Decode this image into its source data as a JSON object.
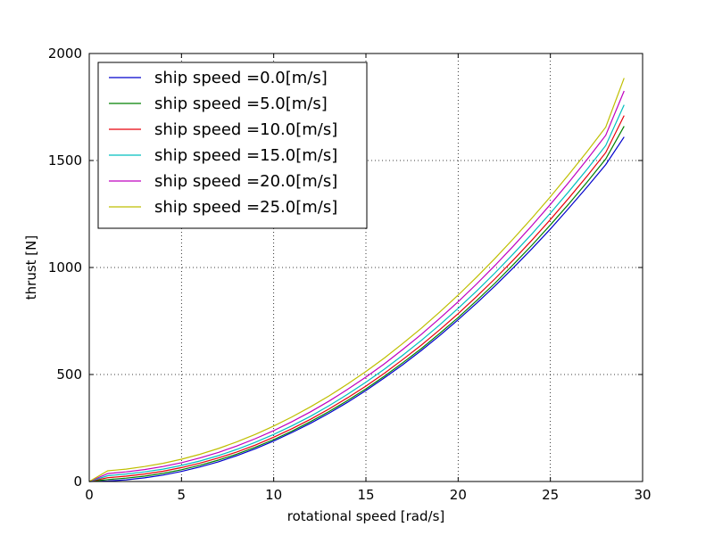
{
  "chart_data": {
    "type": "line",
    "title": "",
    "xlabel": "rotational speed [rad/s]",
    "ylabel": "thrust [N]",
    "xlim": [
      0,
      30
    ],
    "ylim": [
      0,
      2000
    ],
    "xticks": [
      0,
      5,
      10,
      15,
      20,
      25,
      30
    ],
    "yticks": [
      0,
      500,
      1000,
      1500,
      2000
    ],
    "xtick_labels": [
      "0",
      "5",
      "10",
      "15",
      "20",
      "25",
      "30"
    ],
    "ytick_labels": [
      "0",
      "500",
      "1000",
      "1500",
      "2000"
    ],
    "grid": true,
    "legend_location": "upper-left",
    "x": [
      0,
      1,
      2,
      3,
      4,
      5,
      6,
      7,
      8,
      9,
      10,
      11,
      12,
      13,
      14,
      15,
      16,
      17,
      18,
      19,
      20,
      21,
      22,
      23,
      24,
      25,
      26,
      27,
      28,
      29
    ],
    "series": [
      {
        "name": "ship speed =0.0[m/s]",
        "color": "#0000cc",
        "values": [
          0,
          2,
          8,
          17,
          30,
          47,
          68,
          92,
          121,
          153,
          189,
          229,
          272,
          319,
          370,
          425,
          484,
          546,
          612,
          682,
          756,
          833,
          914,
          999,
          1088,
          1180,
          1277,
          1377,
          1481,
          1610
        ]
      },
      {
        "name": "ship speed =5.0[m/s]",
        "color": "#008000",
        "values": [
          0,
          9,
          16,
          25,
          38,
          55,
          76,
          100,
          128,
          160,
          196,
          236,
          280,
          327,
          378,
          433,
          492,
          555,
          621,
          692,
          766,
          845,
          927,
          1014,
          1104,
          1199,
          1297,
          1400,
          1507,
          1660
        ]
      },
      {
        "name": "ship speed =10.0[m/s]",
        "color": "#e8000b",
        "values": [
          0,
          18,
          25,
          35,
          48,
          65,
          86,
          110,
          138,
          170,
          207,
          247,
          291,
          339,
          391,
          446,
          506,
          570,
          637,
          709,
          784,
          864,
          948,
          1036,
          1128,
          1224,
          1324,
          1428,
          1537,
          1710
        ]
      },
      {
        "name": "ship speed =15.0[m/s]",
        "color": "#00bfbf",
        "values": [
          0,
          27,
          35,
          45,
          58,
          75,
          96,
          121,
          150,
          183,
          220,
          261,
          305,
          354,
          407,
          464,
          525,
          590,
          659,
          732,
          809,
          890,
          975,
          1064,
          1157,
          1254,
          1355,
          1460,
          1570,
          1760
        ]
      },
      {
        "name": "ship speed =20.0[m/s]",
        "color": "#bf00bf",
        "values": [
          0,
          37,
          45,
          56,
          70,
          88,
          110,
          136,
          166,
          200,
          238,
          280,
          326,
          376,
          430,
          488,
          550,
          617,
          687,
          762,
          840,
          923,
          1010,
          1101,
          1196,
          1295,
          1398,
          1506,
          1618,
          1825
        ]
      },
      {
        "name": "ship speed =25.0[m/s]",
        "color": "#bfbf00",
        "values": [
          0,
          50,
          58,
          70,
          85,
          104,
          127,
          154,
          185,
          220,
          259,
          302,
          349,
          400,
          455,
          514,
          577,
          645,
          716,
          792,
          871,
          955,
          1043,
          1135,
          1231,
          1331,
          1435,
          1543,
          1656,
          1885
        ]
      }
    ]
  }
}
